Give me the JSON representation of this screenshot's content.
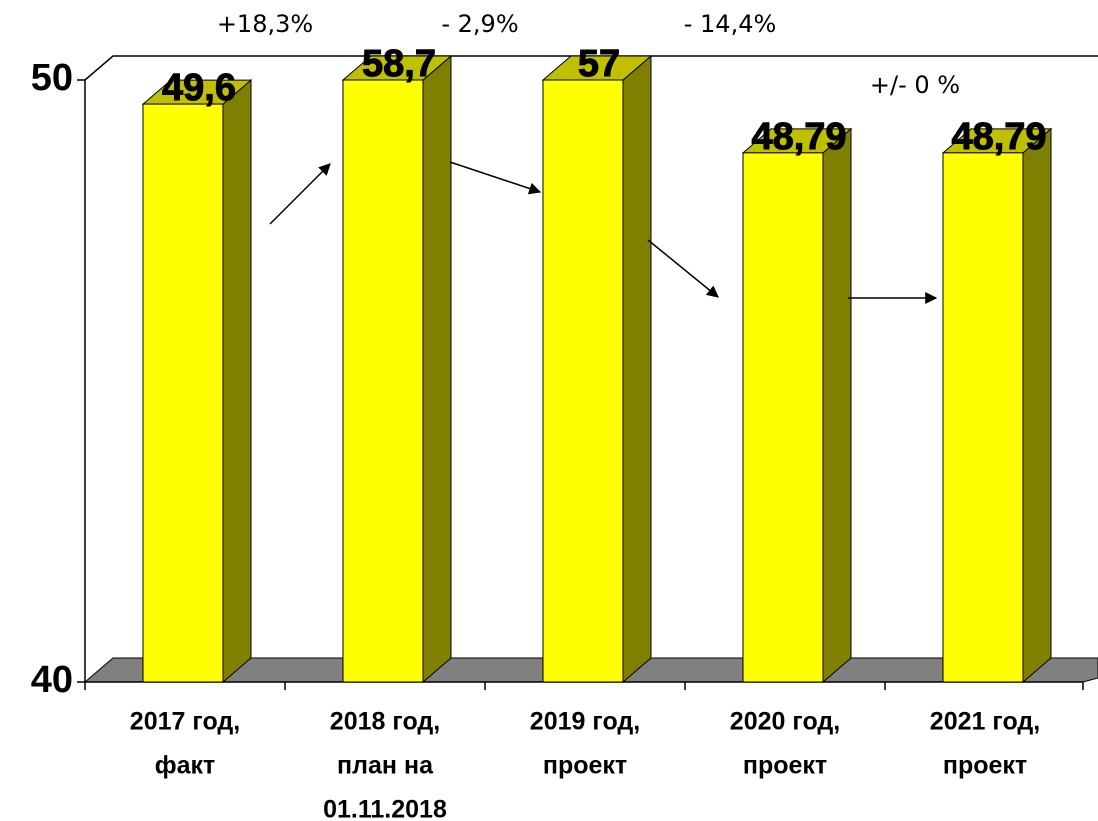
{
  "chart_data": {
    "type": "bar3d",
    "categories": [
      [
        "2017 год,",
        "факт"
      ],
      [
        "2018 год,",
        "план на",
        "01.11.2018"
      ],
      [
        "2019 год,",
        "проект"
      ],
      [
        "2020 год,",
        "проект"
      ],
      [
        "2021 год,",
        "проект"
      ]
    ],
    "values": [
      49.6,
      58.7,
      57,
      48.79,
      48.79
    ],
    "value_labels": [
      "49,6",
      "58,7",
      "57",
      "48,79",
      "48,79"
    ],
    "color": "#ffff00",
    "ylim": [
      40,
      50
    ],
    "yticks": [
      40,
      50
    ],
    "annotations": [
      "+18,3%",
      "- 2,9%",
      "- 14,4%",
      "+/- 0 %"
    ]
  }
}
